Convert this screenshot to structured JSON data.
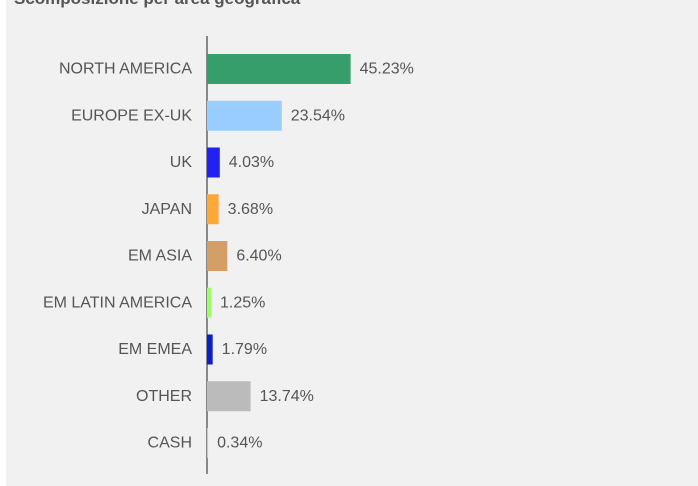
{
  "chart_data": {
    "type": "bar",
    "orientation": "horizontal",
    "title": "Scomposizione per area geografica",
    "categories": [
      "NORTH AMERICA",
      "EUROPE EX-UK",
      "UK",
      "JAPAN",
      "EM ASIA",
      "EM LATIN AMERICA",
      "EM EMEA",
      "OTHER",
      "CASH"
    ],
    "values": [
      45.23,
      23.54,
      4.03,
      3.68,
      6.4,
      1.25,
      1.79,
      13.74,
      0.34
    ],
    "value_labels": [
      "45.23%",
      "23.54%",
      "4.03%",
      "3.68%",
      "6.40%",
      "1.25%",
      "1.79%",
      "13.74%",
      "0.34%"
    ],
    "colors": [
      "#369e6b",
      "#99ccff",
      "#2121f2",
      "#ffa83a",
      "#d39f66",
      "#99ff66",
      "#0b1ec7",
      "#bbbbbb",
      "#c8c8c8"
    ],
    "xlabel": "",
    "ylabel": "",
    "xlim": [
      0,
      100
    ],
    "grid": false,
    "legend": "none"
  }
}
